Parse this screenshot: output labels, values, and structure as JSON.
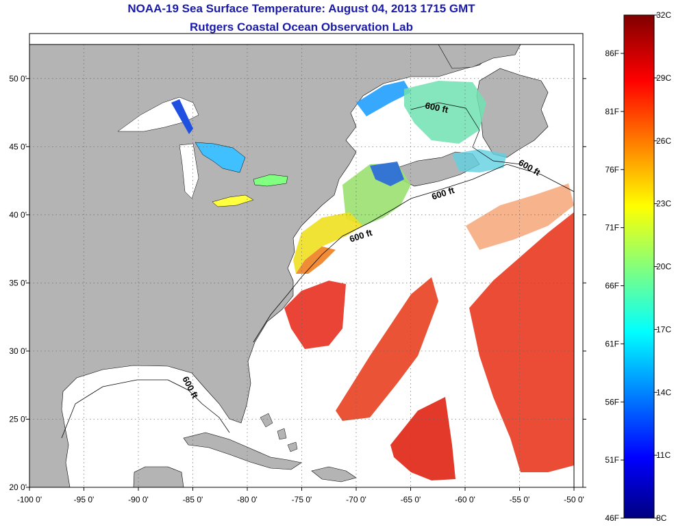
{
  "header": {
    "title": "NOAA-19 Sea Surface Temperature:  August 04, 2013 1715 GMT",
    "subtitle": "Rutgers Coastal Ocean Observation Lab"
  },
  "map": {
    "lon_range": [
      -100,
      -50
    ],
    "lat_range": [
      20,
      52.5
    ],
    "lon_ticks": [
      {
        "value": -100,
        "label": "-100 0'"
      },
      {
        "value": -95,
        "label": "-95 0'"
      },
      {
        "value": -90,
        "label": "-90 0'"
      },
      {
        "value": -85,
        "label": "-85 0'"
      },
      {
        "value": -80,
        "label": "-80 0'"
      },
      {
        "value": -75,
        "label": "-75 0'"
      },
      {
        "value": -70,
        "label": "-70 0'"
      },
      {
        "value": -65,
        "label": "-65 0'"
      },
      {
        "value": -60,
        "label": "-60 0'"
      },
      {
        "value": -55,
        "label": "-55 0'"
      },
      {
        "value": -50,
        "label": "-50 0'"
      }
    ],
    "lat_ticks": [
      {
        "value": 20,
        "label": "20 0'"
      },
      {
        "value": 25,
        "label": "25 0'"
      },
      {
        "value": 30,
        "label": "30 0'"
      },
      {
        "value": 35,
        "label": "35 0'"
      },
      {
        "value": 40,
        "label": "40 0'"
      },
      {
        "value": 45,
        "label": "45 0'"
      },
      {
        "value": 50,
        "label": "50 0'"
      }
    ],
    "contour_labels": [
      "600 ft",
      "600 ft",
      "600 ft",
      "600 ft",
      "600 ft"
    ],
    "colors": {
      "land": "#b4b4b4",
      "water_no_data": "#ffffff"
    }
  },
  "colorbar": {
    "celsius_labels": [
      "32C",
      "29C",
      "26C",
      "23C",
      "20C",
      "17C",
      "14C",
      "11C",
      "8C"
    ],
    "fahrenheit_labels": [
      "86F",
      "81F",
      "76F",
      "71F",
      "66F",
      "61F",
      "56F",
      "51F",
      "46F"
    ],
    "colormap": [
      "#800000",
      "#ff0000",
      "#ff8000",
      "#ffff00",
      "#80ff80",
      "#00ffff",
      "#0080ff",
      "#0000ff",
      "#000080"
    ]
  }
}
